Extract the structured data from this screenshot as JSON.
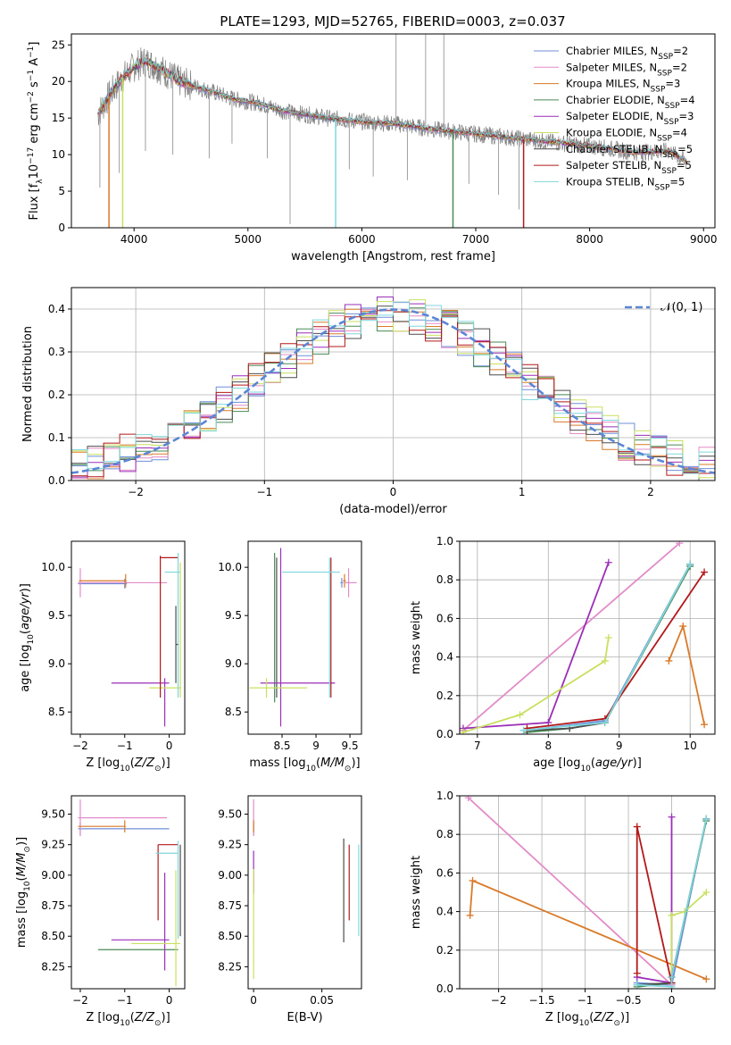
{
  "figure_title": "PLATE=1293, MJD=52765, FIBERID=0003, z=0.037",
  "colors": {
    "Chabrier MILES": "#6f8fd8",
    "Salpeter MILES": "#e28cc8",
    "Kroupa MILES": "#d97a2a",
    "Chabrier ELODIE": "#4a8a55",
    "Salpeter ELODIE": "#9b2fb8",
    "Kroupa ELODIE": "#c8e060",
    "Chabrier STELIB": "#4d4d4d",
    "Salpeter STELIB": "#b3191b",
    "Kroupa STELIB": "#7fd6dc"
  },
  "chart_data": [
    {
      "id": "spectrum",
      "type": "line",
      "title": "PLATE=1293, MJD=52765, FIBERID=0003, z=0.037",
      "xlabel": "wavelength [Angstrom, rest frame]",
      "ylabel": "Flux [f",
      "ylabel_sub": "λ",
      "ylabel_rest": "10",
      "ylabel_sup": "−17",
      "ylabel_tail": " erg cm",
      "ylabel_sup2": "−2",
      "ylabel_tail2": " s",
      "ylabel_sup3": "−1",
      "ylabel_tail3": " A",
      "ylabel_sup4": "−1",
      "ylabel_end": "]",
      "xlim": [
        3450,
        9100
      ],
      "ylim": [
        0,
        26.5
      ],
      "xticks": [
        4000,
        5000,
        6000,
        7000,
        8000,
        9000
      ],
      "yticks": [
        0,
        5,
        10,
        15,
        20,
        25
      ],
      "grid": false,
      "legend_position": "upper-right",
      "series": [
        {
          "name": "Chabrier MILES, N",
          "sub": "SSP",
          "suffix": "=2"
        },
        {
          "name": "Salpeter MILES, N",
          "sub": "SSP",
          "suffix": "=2"
        },
        {
          "name": "Kroupa MILES, N",
          "sub": "SSP",
          "suffix": "=3"
        },
        {
          "name": "Chabrier ELODIE, N",
          "sub": "SSP",
          "suffix": "=4"
        },
        {
          "name": "Salpeter ELODIE, N",
          "sub": "SSP",
          "suffix": "=3"
        },
        {
          "name": "Kroupa ELODIE, N",
          "sub": "SSP",
          "suffix": "=4"
        },
        {
          "name": "Chabrier STELIB, N",
          "sub": "SSP",
          "suffix": "=5"
        },
        {
          "name": "Salpeter STELIB, N",
          "sub": "SSP",
          "suffix": "=5"
        },
        {
          "name": "Kroupa STELIB, N",
          "sub": "SSP",
          "suffix": "=5"
        }
      ],
      "continuum": {
        "x": [
          3680,
          3720,
          3800,
          3900,
          4000,
          4100,
          4200,
          4300,
          4400,
          4500,
          4700,
          4900,
          5100,
          5300,
          5500,
          5700,
          6000,
          6300,
          6600,
          6900,
          7200,
          7500,
          7800,
          8100,
          8400,
          8700,
          8850
        ],
        "y": [
          15.5,
          16.5,
          18.5,
          20.5,
          22.0,
          22.8,
          22.0,
          21.0,
          20.0,
          19.5,
          18.5,
          17.5,
          17.0,
          16.0,
          15.5,
          15.0,
          14.5,
          14.2,
          13.5,
          13.0,
          12.5,
          12.0,
          11.5,
          11.0,
          10.3,
          10.5,
          9.0
        ]
      },
      "spikes": [
        {
          "x": 3700,
          "y": 5.5
        },
        {
          "x": 3870,
          "y": 7.5
        },
        {
          "x": 4100,
          "y": 10.5
        },
        {
          "x": 4340,
          "y": 10.0
        },
        {
          "x": 4660,
          "y": 9.5
        },
        {
          "x": 4860,
          "y": 11.5
        },
        {
          "x": 5170,
          "y": 9.5
        },
        {
          "x": 5370,
          "y": 0.5
        },
        {
          "x": 5890,
          "y": 8.0
        },
        {
          "x": 6100,
          "y": 7.0
        },
        {
          "x": 6300,
          "y": 26.5
        },
        {
          "x": 6400,
          "y": 6.5
        },
        {
          "x": 6560,
          "y": 26.5
        },
        {
          "x": 6720,
          "y": 26.5
        },
        {
          "x": 6940,
          "y": 6.0
        },
        {
          "x": 7200,
          "y": 4.5
        },
        {
          "x": 7380,
          "y": 2.5
        }
      ],
      "model_dropouts": [
        {
          "x": 3780,
          "series": 2
        },
        {
          "x": 3900,
          "series": 5
        },
        {
          "x": 5770,
          "series": 8
        },
        {
          "x": 6800,
          "series": 3
        },
        {
          "x": 7420,
          "series": 7
        }
      ]
    },
    {
      "id": "residuals",
      "type": "histogram",
      "xlabel": "(data-model)/error",
      "ylabel": "Normed distribution",
      "xlim": [
        -2.5,
        2.5
      ],
      "ylim": [
        0,
        0.45
      ],
      "xticks": [
        -2,
        -1,
        0,
        1,
        2
      ],
      "yticks": [
        0.0,
        0.1,
        0.2,
        0.3,
        0.4
      ],
      "grid": true,
      "bin_width": 0.125,
      "reference_curve": {
        "label": "𝒩(0, 1)",
        "type": "normal",
        "mean": 0,
        "sigma": 1
      },
      "legend_position": "upper-right"
    },
    {
      "id": "age-vs-Z",
      "type": "errorbar",
      "xlabel": "Z [log",
      "xlabel_sub": "10",
      "xlabel_rest": "(Z/Z",
      "xlabel_sub2": "⊙",
      "xlabel_end": ")]",
      "ylabel": "age  [log",
      "ylabel_sub": "10",
      "ylabel_rest": "(age/yr)]",
      "xlim": [
        -2.2,
        0.35
      ],
      "ylim": [
        8.27,
        10.27
      ],
      "xticks": [
        -2,
        -1,
        0
      ],
      "yticks": [
        8.5,
        9.0,
        9.5,
        10.0
      ],
      "grid": false,
      "points": [
        {
          "series": 0,
          "x": -1.0,
          "xerr": [
            1.05,
            0.05
          ],
          "y": 9.83,
          "yerr": [
            0.05,
            0.05
          ]
        },
        {
          "series": 1,
          "x": -2.0,
          "xerr": [
            0.05,
            1.95
          ],
          "y": 9.84,
          "yerr": [
            0.15,
            0.15
          ]
        },
        {
          "series": 2,
          "x": -0.98,
          "xerr": [
            1.05,
            0.02
          ],
          "y": 9.86,
          "yerr": [
            0.07,
            0.07
          ]
        },
        {
          "series": 4,
          "x": -0.1,
          "xerr": [
            1.2,
            0.1
          ],
          "y": 8.8,
          "yerr": [
            0.45,
            0.05
          ]
        },
        {
          "series": 5,
          "x": 0.25,
          "xerr": [
            0.7,
            0.02
          ],
          "y": 8.75,
          "yerr": [
            0.1,
            1.3
          ]
        },
        {
          "series": 7,
          "x": -0.2,
          "xerr": [
            0.0,
            0.4
          ],
          "y": 10.1,
          "yerr": [
            1.45,
            0.02
          ]
        },
        {
          "series": 8,
          "x": 0.2,
          "xerr": [
            0.3,
            0.05
          ],
          "y": 9.95,
          "yerr": [
            1.3,
            0.2
          ]
        },
        {
          "series": 6,
          "x": 0.15,
          "xerr": [
            0.0,
            0.05
          ],
          "y": 9.2,
          "yerr": [
            0.4,
            0.4
          ]
        }
      ]
    },
    {
      "id": "age-vs-mass",
      "type": "errorbar",
      "xlabel": "mass [log",
      "xlabel_sub": "10",
      "xlabel_rest": "(M/M",
      "xlabel_sub2": "⊙",
      "xlabel_end": ")]",
      "xlim": [
        8.0,
        9.67
      ],
      "ylim": [
        8.27,
        10.27
      ],
      "xticks": [
        8.5,
        9.0,
        9.5
      ],
      "yticks": [
        8.5,
        9.0,
        9.5,
        10.0
      ],
      "grid": false,
      "points": [
        {
          "series": 3,
          "x": 8.39,
          "xerr": [
            0.0,
            0.0
          ],
          "y": 9.6,
          "yerr": [
            1.0,
            0.55
          ]
        },
        {
          "series": 6,
          "x": 8.42,
          "xerr": [
            0.0,
            0.0
          ],
          "y": 9.55,
          "yerr": [
            0.9,
            0.55
          ]
        },
        {
          "series": 4,
          "x": 8.48,
          "xerr": [
            0.3,
            0.8
          ],
          "y": 8.8,
          "yerr": [
            0.45,
            1.4
          ]
        },
        {
          "series": 5,
          "x": 8.27,
          "xerr": [
            0.25,
            0.6
          ],
          "y": 8.75,
          "yerr": [
            0.1,
            0.1
          ]
        },
        {
          "series": 7,
          "x": 9.22,
          "xerr": [
            0.0,
            0.0
          ],
          "y": 9.45,
          "yerr": [
            0.8,
            0.65
          ]
        },
        {
          "series": 8,
          "x": 9.2,
          "xerr": [
            0.7,
            0.15
          ],
          "y": 9.95,
          "yerr": [
            1.3,
            0.15
          ]
        },
        {
          "series": 0,
          "x": 9.38,
          "xerr": [
            0.02,
            0.02
          ],
          "y": 9.84,
          "yerr": [
            0.05,
            0.05
          ]
        },
        {
          "series": 1,
          "x": 9.48,
          "xerr": [
            0.05,
            0.12
          ],
          "y": 9.84,
          "yerr": [
            0.15,
            0.15
          ]
        },
        {
          "series": 2,
          "x": 9.42,
          "xerr": [
            0.02,
            0.02
          ],
          "y": 9.86,
          "yerr": [
            0.07,
            0.07
          ]
        }
      ]
    },
    {
      "id": "weight-vs-age",
      "type": "line",
      "xlabel": "age  [log",
      "xlabel_sub": "10",
      "xlabel_rest": "(age/yr)]",
      "ylabel": "mass weight",
      "xlim": [
        6.75,
        10.35
      ],
      "ylim": [
        0,
        1.0
      ],
      "xticks": [
        7,
        8,
        9,
        10
      ],
      "yticks": [
        0.0,
        0.2,
        0.4,
        0.6,
        0.8,
        1.0
      ],
      "grid": true,
      "series": [
        {
          "series": 0,
          "x": [
            7.7,
            8.8,
            10.0
          ],
          "y": [
            0.02,
            0.07,
            0.88
          ]
        },
        {
          "series": 1,
          "x": [
            6.8,
            9.85
          ],
          "y": [
            0.02,
            0.99
          ]
        },
        {
          "series": 2,
          "x": [
            9.7,
            9.9,
            10.2
          ],
          "y": [
            0.38,
            0.56,
            0.05
          ]
        },
        {
          "series": 3,
          "x": [
            7.7,
            8.3,
            8.8,
            10.0
          ],
          "y": [
            0.01,
            0.03,
            0.06,
            0.87
          ]
        },
        {
          "series": 4,
          "x": [
            6.8,
            8.0,
            8.85
          ],
          "y": [
            0.03,
            0.06,
            0.89
          ]
        },
        {
          "series": 5,
          "x": [
            6.8,
            7.6,
            8.8,
            8.85
          ],
          "y": [
            0.01,
            0.1,
            0.38,
            0.5
          ]
        },
        {
          "series": 6,
          "x": [
            7.7,
            8.3,
            8.8,
            10.0
          ],
          "y": [
            0.02,
            0.03,
            0.06,
            0.88
          ]
        },
        {
          "series": 7,
          "x": [
            7.7,
            8.8,
            10.2
          ],
          "y": [
            0.03,
            0.08,
            0.84
          ]
        },
        {
          "series": 8,
          "x": [
            7.65,
            8.8,
            10.0
          ],
          "y": [
            0.02,
            0.06,
            0.88
          ]
        }
      ]
    },
    {
      "id": "mass-vs-Z",
      "type": "errorbar",
      "xlabel": "Z [log",
      "xlabel_sub": "10",
      "xlabel_rest": "(Z/Z",
      "xlabel_sub2": "⊙",
      "xlabel_end": ")]",
      "ylabel": "mass [log",
      "ylabel_sub": "10",
      "ylabel_rest": "(M/M",
      "ylabel_sub2": "⊙",
      "ylabel_end": ")]",
      "xlim": [
        -2.2,
        0.35
      ],
      "ylim": [
        8.07,
        9.65
      ],
      "xticks": [
        -2,
        -1,
        0
      ],
      "yticks": [
        8.25,
        8.5,
        8.75,
        9.0,
        9.25,
        9.5
      ],
      "grid": false,
      "points": [
        {
          "series": 0,
          "x": -2.0,
          "xerr": [
            0.05,
            2.0
          ],
          "y": 9.38,
          "yerr": [
            0.05,
            0.05
          ]
        },
        {
          "series": 1,
          "x": -2.0,
          "xerr": [
            0.05,
            1.95
          ],
          "y": 9.47,
          "yerr": [
            0.15,
            0.15
          ]
        },
        {
          "series": 2,
          "x": -1.0,
          "xerr": [
            1.05,
            0.02
          ],
          "y": 9.4,
          "yerr": [
            0.05,
            0.05
          ]
        },
        {
          "series": 3,
          "x": -0.9,
          "xerr": [
            0.7,
            1.1
          ],
          "y": 8.39,
          "yerr": [
            0.0,
            0.0
          ]
        },
        {
          "series": 4,
          "x": -0.1,
          "xerr": [
            1.2,
            0.1
          ],
          "y": 8.47,
          "yerr": [
            0.25,
            0.55
          ]
        },
        {
          "series": 5,
          "x": 0.15,
          "xerr": [
            1.0,
            0.1
          ],
          "y": 8.44,
          "yerr": [
            0.35,
            0.6
          ]
        },
        {
          "series": 7,
          "x": -0.25,
          "xerr": [
            0.0,
            0.45
          ],
          "y": 9.25,
          "yerr": [
            0.62,
            0.0
          ]
        },
        {
          "series": 8,
          "x": 0.2,
          "xerr": [
            0.5,
            0.0
          ],
          "y": 9.18,
          "yerr": [
            0.7,
            0.1
          ]
        },
        {
          "series": 6,
          "x": 0.25,
          "xerr": [
            0.0,
            0.0
          ],
          "y": 8.85,
          "yerr": [
            0.35,
            0.4
          ]
        }
      ]
    },
    {
      "id": "mass-vs-ebv",
      "type": "errorbar",
      "xlabel": "E(B-V)",
      "xlim": [
        -0.004,
        0.079
      ],
      "ylim": [
        8.07,
        9.65
      ],
      "xticks": [
        0.0,
        0.05
      ],
      "yticks": [
        8.25,
        8.5,
        8.75,
        9.0,
        9.25,
        9.5
      ],
      "grid": false,
      "points": [
        {
          "series": 0,
          "x": 0.0,
          "xerr": [
            0.0,
            0.0
          ],
          "y": 9.38,
          "yerr": [
            0.05,
            0.05
          ]
        },
        {
          "series": 1,
          "x": 0.0,
          "xerr": [
            0.0,
            0.0
          ],
          "y": 9.47,
          "yerr": [
            0.15,
            0.15
          ]
        },
        {
          "series": 2,
          "x": 0.0,
          "xerr": [
            0.0,
            0.0
          ],
          "y": 9.4,
          "yerr": [
            0.05,
            0.05
          ]
        },
        {
          "series": 4,
          "x": 0.0,
          "xerr": [
            0.0,
            0.0
          ],
          "y": 9.0,
          "yerr": [
            0.15,
            0.2
          ]
        },
        {
          "series": 5,
          "x": 0.0,
          "xerr": [
            0.0,
            0.0
          ],
          "y": 8.6,
          "yerr": [
            0.45,
            0.45
          ]
        },
        {
          "series": 6,
          "x": 0.066,
          "xerr": [
            0.0,
            0.0
          ],
          "y": 8.9,
          "yerr": [
            0.45,
            0.4
          ]
        },
        {
          "series": 7,
          "x": 0.07,
          "xerr": [
            0.0,
            0.0
          ],
          "y": 8.95,
          "yerr": [
            0.32,
            0.3
          ]
        },
        {
          "series": 8,
          "x": 0.077,
          "xerr": [
            0.0,
            0.0
          ],
          "y": 8.85,
          "yerr": [
            0.35,
            0.4
          ]
        }
      ]
    },
    {
      "id": "weight-vs-Z",
      "type": "line",
      "xlabel": "Z [log",
      "xlabel_sub": "10",
      "xlabel_rest": "(Z/Z",
      "xlabel_sub2": "⊙",
      "xlabel_end": ")]",
      "ylabel": "mass weight",
      "xlim": [
        -2.45,
        0.5
      ],
      "ylim": [
        0,
        1.0
      ],
      "xticks": [
        -2.0,
        -1.5,
        -1.0,
        -0.5,
        0.0
      ],
      "yticks": [
        0.0,
        0.2,
        0.4,
        0.6,
        0.8,
        1.0
      ],
      "grid": true,
      "series": [
        {
          "series": 0,
          "x": [
            -0.4,
            0.0,
            0.4
          ],
          "y": [
            0.03,
            0.02,
            0.88
          ]
        },
        {
          "series": 1,
          "x": [
            -2.35,
            0.0
          ],
          "y": [
            0.99,
            0.02
          ]
        },
        {
          "series": 2,
          "x": [
            -2.33,
            -2.3,
            0.4
          ],
          "y": [
            0.38,
            0.56,
            0.05
          ]
        },
        {
          "series": 3,
          "x": [
            -0.4,
            0.0,
            0.0,
            0.4
          ],
          "y": [
            0.01,
            0.03,
            0.06,
            0.87
          ]
        },
        {
          "series": 4,
          "x": [
            -0.4,
            0.0,
            0.0
          ],
          "y": [
            0.06,
            0.03,
            0.89
          ]
        },
        {
          "series": 5,
          "x": [
            0.0,
            0.0,
            0.15,
            0.4
          ],
          "y": [
            0.01,
            0.38,
            0.4,
            0.5
          ]
        },
        {
          "series": 6,
          "x": [
            -0.4,
            0.0,
            0.0,
            0.4
          ],
          "y": [
            0.02,
            0.03,
            0.06,
            0.88
          ]
        },
        {
          "series": 7,
          "x": [
            -0.4,
            -0.4,
            0.0
          ],
          "y": [
            0.08,
            0.84,
            0.03
          ]
        },
        {
          "series": 8,
          "x": [
            -0.4,
            0.0,
            0.0,
            0.4
          ],
          "y": [
            0.02,
            0.01,
            0.06,
            0.88
          ]
        }
      ]
    }
  ]
}
